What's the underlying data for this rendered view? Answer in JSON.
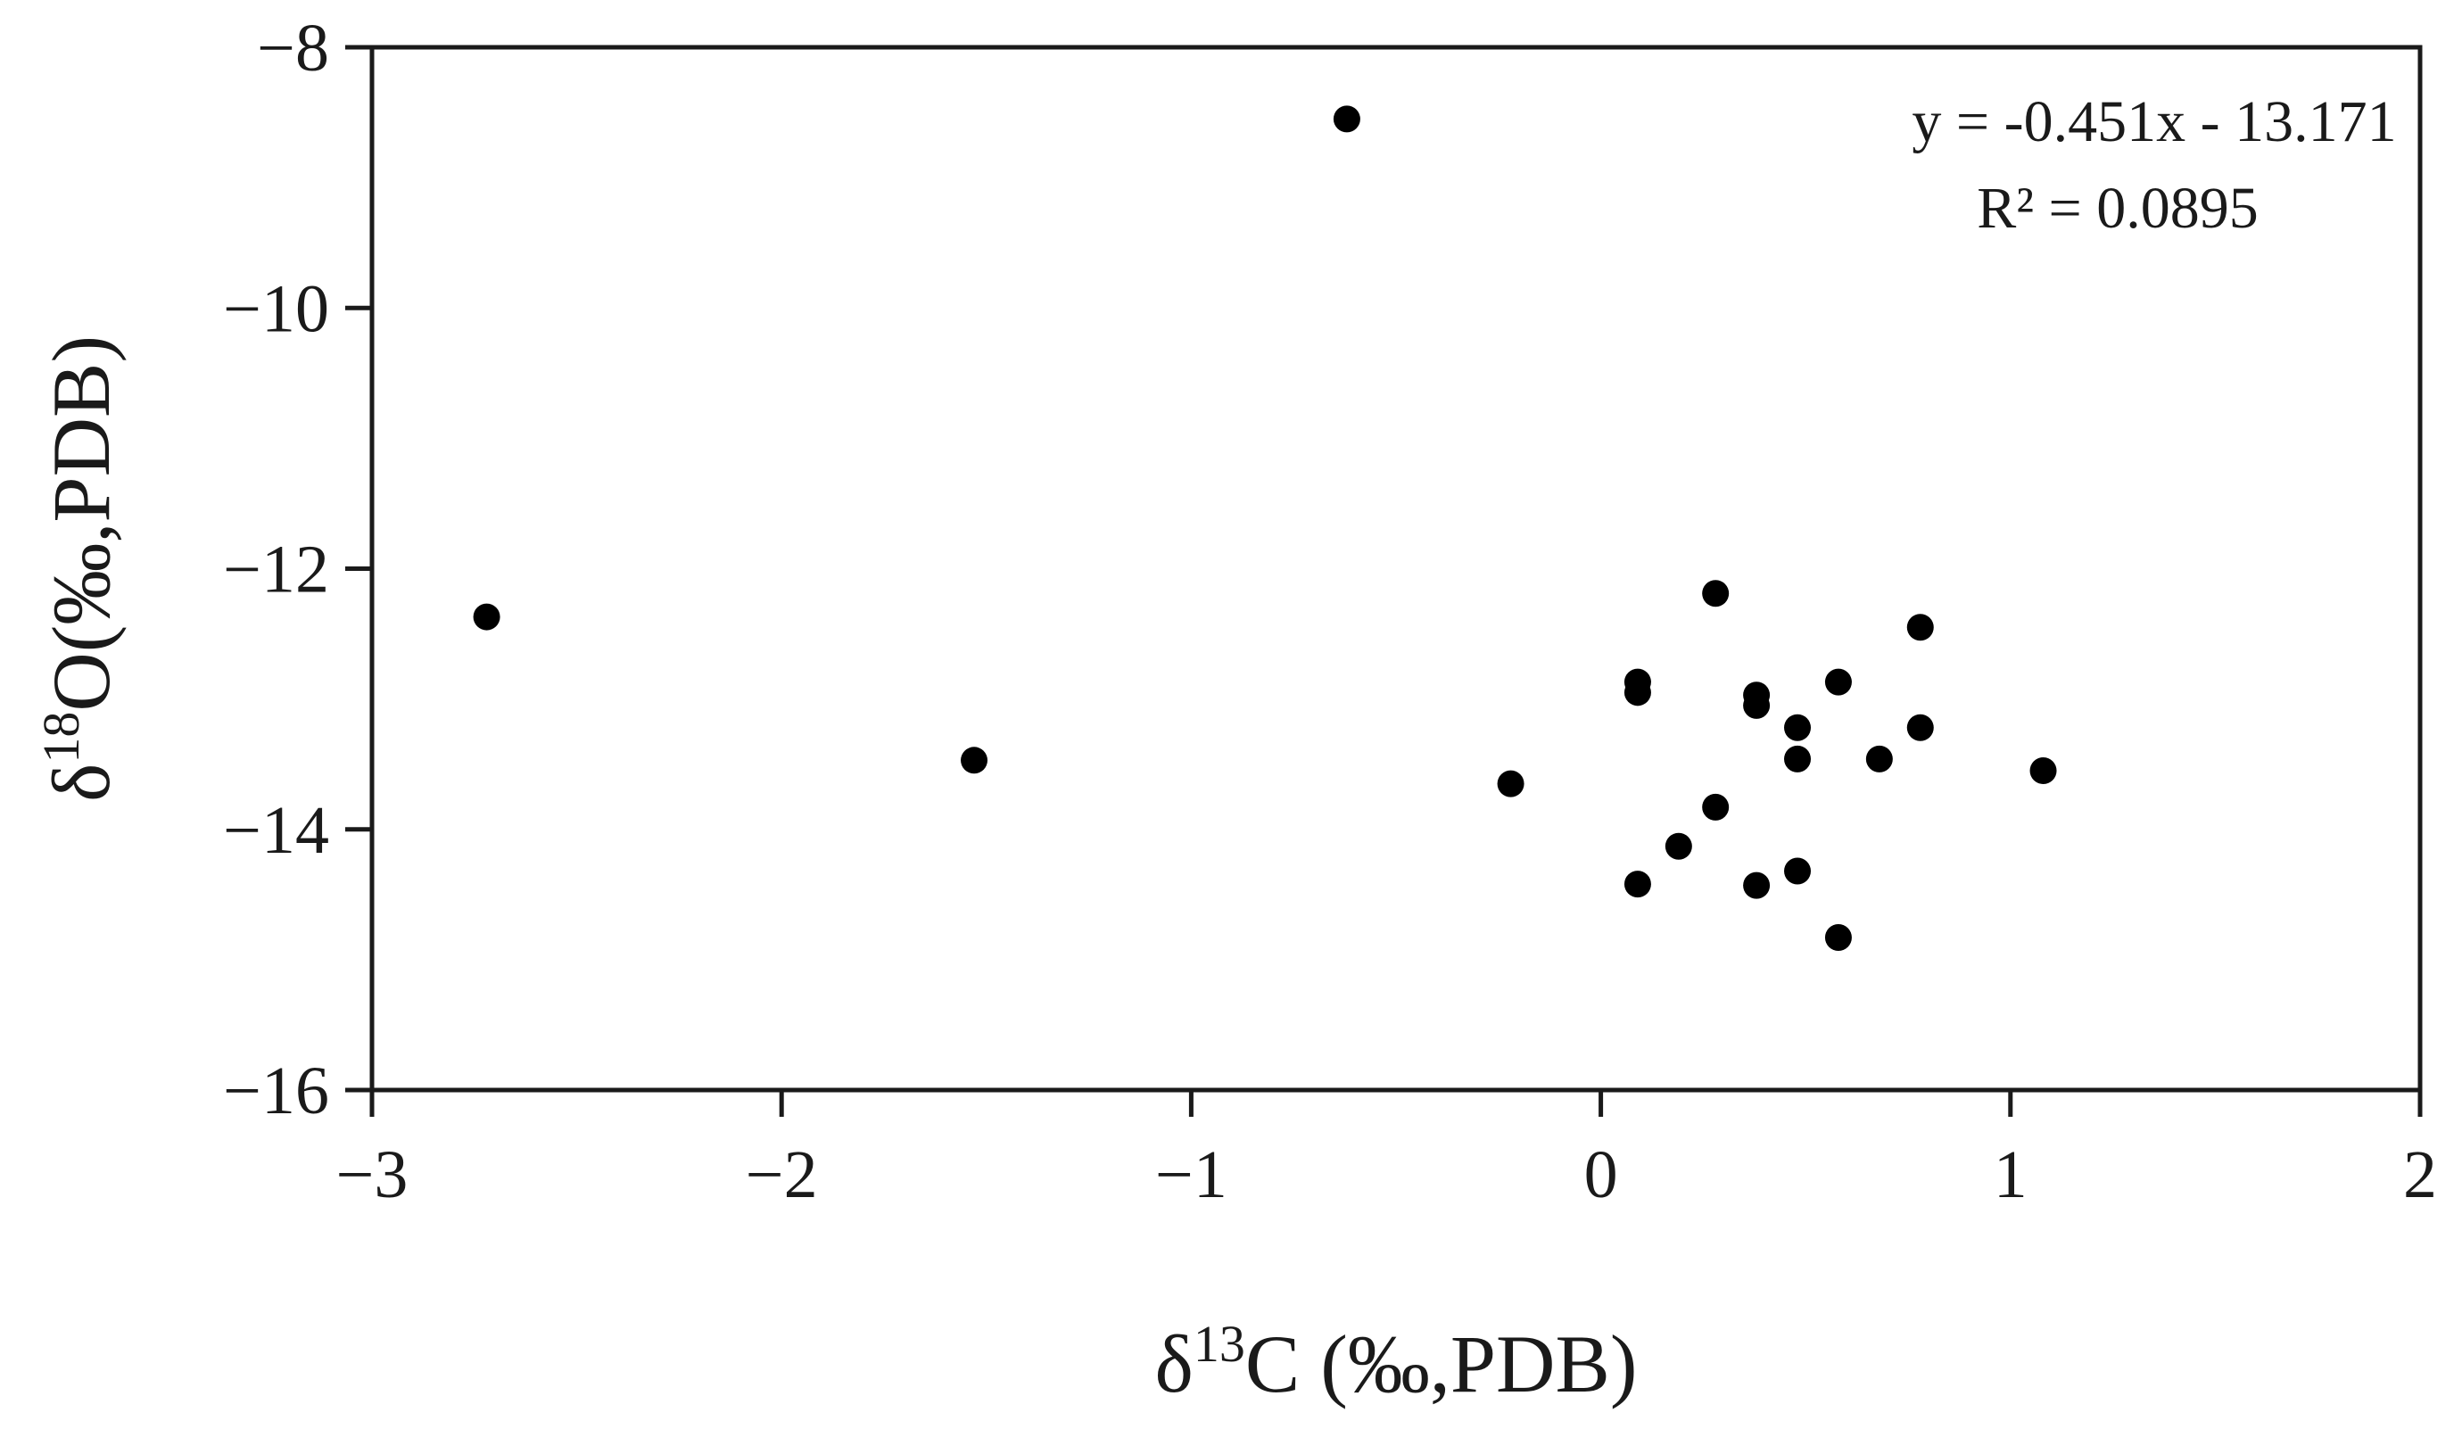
{
  "chart_data": {
    "type": "scatter",
    "title": "",
    "xlabel": {
      "prefix": "δ",
      "superscript": "13",
      "suffix": "C (‰,PDB)"
    },
    "ylabel": {
      "prefix": "δ",
      "superscript": "18",
      "suffix": "O(‰,PDB)"
    },
    "xlim": [
      -3,
      2
    ],
    "ylim": [
      -16,
      -8
    ],
    "xticks": [
      -3,
      -2,
      -1,
      0,
      1,
      2
    ],
    "yticks": [
      -16,
      -14,
      -12,
      -10,
      -8
    ],
    "xtick_labels": [
      "−3",
      "−2",
      "−1",
      "0",
      "1",
      "2"
    ],
    "ytick_labels": [
      "−16",
      "−14",
      "−12",
      "−10",
      "−8"
    ],
    "grid": false,
    "legend": "none",
    "marker_color": "#000000",
    "annotation": {
      "equation": "y = -0.451x - 13.171",
      "r_squared": "R² = 0.0895"
    },
    "points": [
      {
        "x": -0.62,
        "y": -8.55
      },
      {
        "x": -2.72,
        "y": -12.37
      },
      {
        "x": -1.53,
        "y": -13.47
      },
      {
        "x": -0.22,
        "y": -13.65
      },
      {
        "x": 0.09,
        "y": -12.87
      },
      {
        "x": 0.09,
        "y": -12.95
      },
      {
        "x": 0.09,
        "y": -14.42
      },
      {
        "x": 0.19,
        "y": -14.13
      },
      {
        "x": 0.28,
        "y": -12.19
      },
      {
        "x": 0.28,
        "y": -13.83
      },
      {
        "x": 0.38,
        "y": -12.97
      },
      {
        "x": 0.38,
        "y": -13.05
      },
      {
        "x": 0.38,
        "y": -14.43
      },
      {
        "x": 0.48,
        "y": -13.22
      },
      {
        "x": 0.48,
        "y": -13.46
      },
      {
        "x": 0.48,
        "y": -14.32
      },
      {
        "x": 0.58,
        "y": -12.87
      },
      {
        "x": 0.58,
        "y": -14.83
      },
      {
        "x": 0.68,
        "y": -13.46
      },
      {
        "x": 0.78,
        "y": -12.45
      },
      {
        "x": 0.78,
        "y": -13.22
      },
      {
        "x": 1.08,
        "y": -13.55
      }
    ]
  }
}
